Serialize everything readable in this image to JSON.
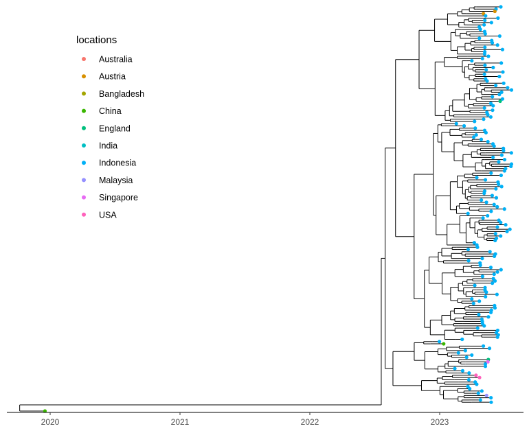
{
  "chart_data": {
    "type": "phylogenetic-tree",
    "x_axis": {
      "ticks": [
        "2020",
        "2021",
        "2022",
        "2023"
      ],
      "range": [
        2019.8,
        2023.65
      ]
    },
    "legend": {
      "title": "locations",
      "entries": [
        {
          "label": "Australia",
          "color": "#F8766D"
        },
        {
          "label": "Austria",
          "color": "#D89000"
        },
        {
          "label": "Bangladesh",
          "color": "#A3A500"
        },
        {
          "label": "China",
          "color": "#39B600"
        },
        {
          "label": "England",
          "color": "#00BF7D"
        },
        {
          "label": "India",
          "color": "#00BFC4"
        },
        {
          "label": "Indonesia",
          "color": "#00B0F6"
        },
        {
          "label": "Malaysia",
          "color": "#9590FF"
        },
        {
          "label": "Singapore",
          "color": "#E76BF3"
        },
        {
          "label": "USA",
          "color": "#FF62BC"
        }
      ]
    },
    "root_year": 2019.85,
    "first_split_year": 2022.6,
    "latest_tip_year": 2023.5,
    "dominant_location": "Indonesia",
    "other_tip_locations": [
      "China",
      "England",
      "Austria",
      "Singapore",
      "USA",
      "Malaysia"
    ]
  }
}
